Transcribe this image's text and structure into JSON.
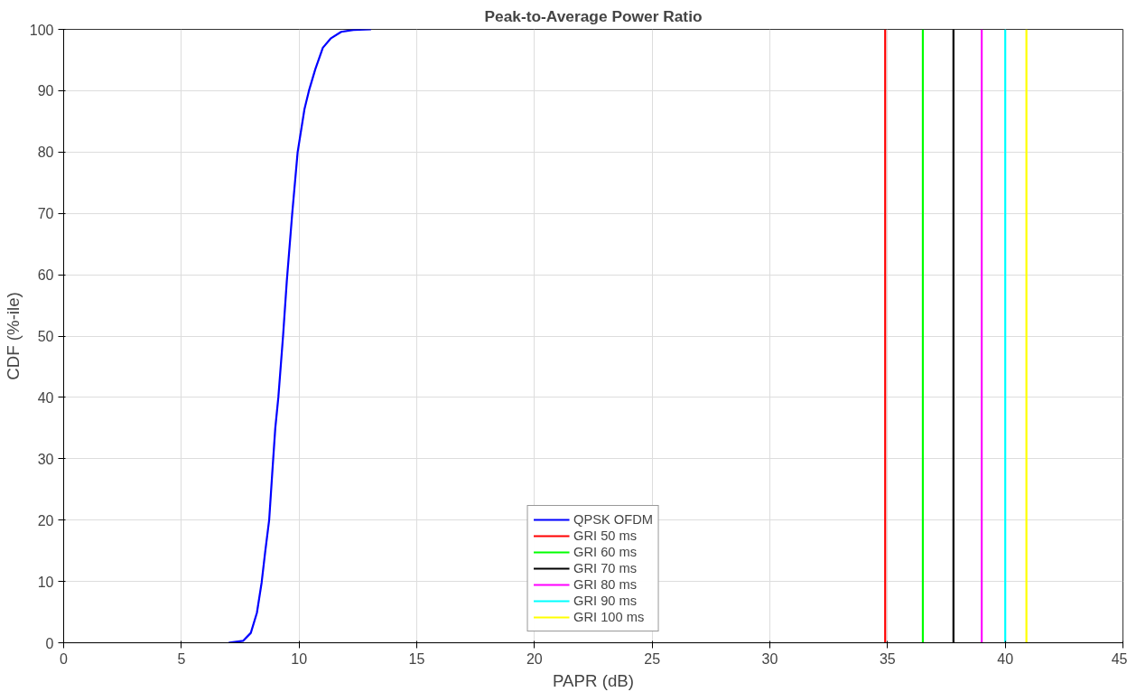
{
  "chart_data": {
    "type": "line",
    "title": "Peak-to-Average Power Ratio",
    "xlabel": "PAPR (dB)",
    "ylabel": "CDF (%-ile)",
    "xlim": [
      0,
      45
    ],
    "xticks": [
      0,
      5,
      10,
      15,
      20,
      25,
      30,
      35,
      40,
      45
    ],
    "ylim": [
      0,
      100
    ],
    "yticks": [
      0,
      10,
      20,
      30,
      40,
      50,
      60,
      70,
      80,
      90,
      100
    ],
    "grid": true,
    "legend": "bottom",
    "line_style": "solid",
    "marker": "none",
    "series": [
      {
        "name": "QPSK OFDM",
        "color": "#0000ff",
        "x": [
          7.01,
          7.62,
          7.95,
          8.21,
          8.41,
          8.56,
          8.73,
          8.86,
          8.99,
          9.12,
          9.32,
          9.48,
          9.71,
          9.94,
          10.23,
          10.42,
          10.69,
          11.01,
          11.34,
          11.79,
          12.31,
          13.06
        ],
        "values": [
          0,
          0.3,
          1.6,
          4.9,
          9.8,
          14.8,
          20,
          27.6,
          35,
          40,
          50,
          59,
          70,
          80,
          87,
          90,
          93.5,
          97,
          98.5,
          99.6,
          99.9,
          100
        ]
      },
      {
        "name": "GRI 50 ms",
        "color": "#ff0000",
        "x": [
          34.9,
          34.9
        ],
        "values": [
          0,
          100
        ]
      },
      {
        "name": "GRI 60 ms",
        "color": "#00ff00",
        "x": [
          36.5,
          36.5
        ],
        "values": [
          0,
          100
        ]
      },
      {
        "name": "GRI 70 ms",
        "color": "#000000",
        "x": [
          37.8,
          37.8
        ],
        "values": [
          0,
          100
        ]
      },
      {
        "name": "GRI 80 ms",
        "color": "#ff00ff",
        "x": [
          39.0,
          39.0
        ],
        "values": [
          0,
          100
        ]
      },
      {
        "name": "GRI 90 ms",
        "color": "#00ffff",
        "x": [
          40.0,
          40.0
        ],
        "values": [
          0,
          100
        ]
      },
      {
        "name": "GRI 100 ms",
        "color": "#ffff00",
        "x": [
          40.9,
          40.9
        ],
        "values": [
          0,
          100
        ]
      }
    ]
  }
}
